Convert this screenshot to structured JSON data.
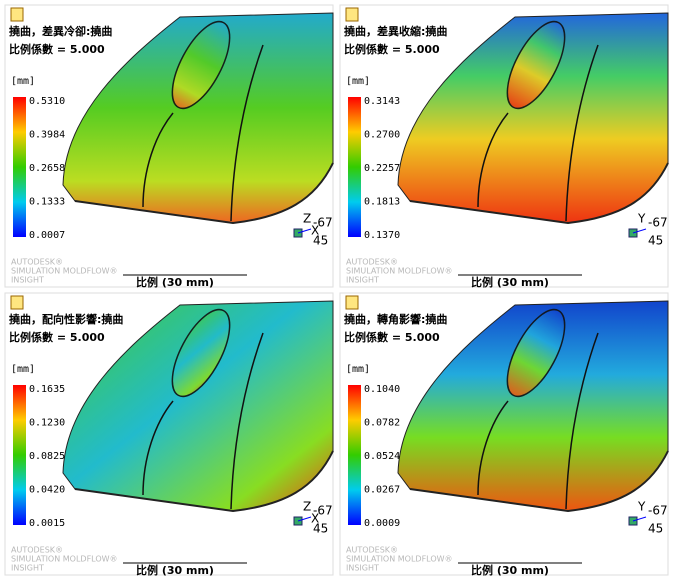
{
  "panels": [
    {
      "title": "撓曲，差異冷卻:撓曲",
      "scale_factor": "比例係數 = 5.000",
      "unit": "[mm]",
      "legend": [
        "0.5310",
        "0.3984",
        "0.2658",
        "0.1333",
        "0.0007"
      ],
      "triad": [
        "Z",
        "X"
      ],
      "angles": [
        "-67",
        "45"
      ],
      "watermark": [
        "AUTODESK®",
        "SIMULATION MOLDFLOW®",
        "INSIGHT"
      ],
      "scale_bar": "比例 (30 mm)"
    },
    {
      "title": "撓曲，差異收縮:撓曲",
      "scale_factor": "比例係數 = 5.000",
      "unit": "[mm]",
      "legend": [
        "0.3143",
        "0.2700",
        "0.2257",
        "0.1813",
        "0.1370"
      ],
      "triad": [
        "Y"
      ],
      "angles": [
        "-67",
        "45"
      ],
      "watermark": [
        "AUTODESK®",
        "SIMULATION MOLDFLOW®",
        "INSIGHT"
      ],
      "scale_bar": "比例 (30 mm)"
    },
    {
      "title": "撓曲，配向性影響:撓曲",
      "scale_factor": "比例係數 = 5.000",
      "unit": "[mm]",
      "legend": [
        "0.1635",
        "0.1230",
        "0.0825",
        "0.0420",
        "0.0015"
      ],
      "triad": [
        "Z",
        "X"
      ],
      "angles": [
        "-67",
        "45"
      ],
      "watermark": [
        "AUTODESK®",
        "SIMULATION MOLDFLOW®",
        "INSIGHT"
      ],
      "scale_bar": "比例 (30 mm)"
    },
    {
      "title": "撓曲，轉角影響:撓曲",
      "scale_factor": "比例係數 = 5.000",
      "unit": "[mm]",
      "legend": [
        "0.1040",
        "0.0782",
        "0.0524",
        "0.0267",
        "0.0009"
      ],
      "triad": [
        "Y"
      ],
      "angles": [
        "-67",
        "45"
      ],
      "watermark": [
        "AUTODESK®",
        "SIMULATION MOLDFLOW®",
        "INSIGHT"
      ],
      "scale_bar": "比例 (30 mm)"
    }
  ]
}
